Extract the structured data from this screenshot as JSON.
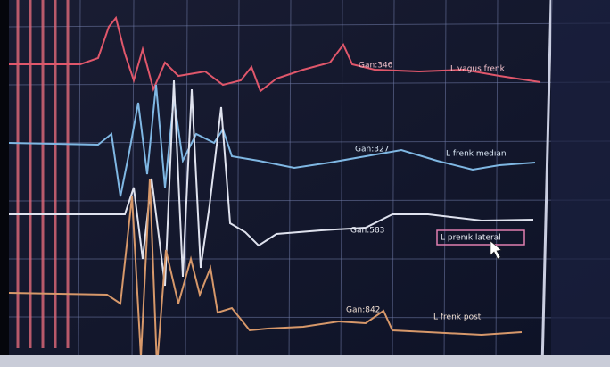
{
  "channels": [
    {
      "gain": "Gan:346",
      "label": "L vagus frenk"
    },
    {
      "gain": "Gan:327",
      "label": "L frenk medıan"
    },
    {
      "gain": "Gan:583",
      "label": "L prenık lateral"
    },
    {
      "gain": "Gan:842",
      "label": "L frenk post"
    }
  ]
}
